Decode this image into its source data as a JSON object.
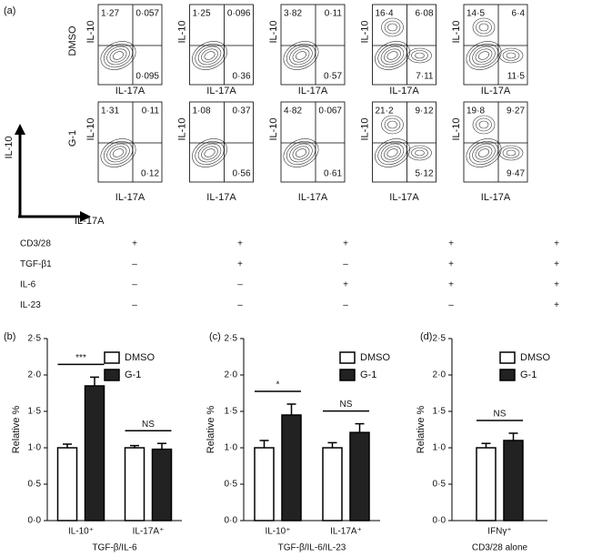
{
  "panel_a": {
    "label": "(a)",
    "x_axis": "IL-17A",
    "y_axis": "IL-10",
    "rows": [
      {
        "label": "DMSO",
        "plots": [
          {
            "ul": "1·27",
            "ur": "0·057",
            "lr": "0·095"
          },
          {
            "ul": "1·25",
            "ur": "0·096",
            "lr": "0·36"
          },
          {
            "ul": "3·82",
            "ur": "0·11",
            "lr": "0·57"
          },
          {
            "ul": "16·4",
            "ur": "6·08",
            "lr": "7·11"
          },
          {
            "ul": "14·5",
            "ur": "6·4",
            "lr": "11·5"
          }
        ]
      },
      {
        "label": "G-1",
        "plots": [
          {
            "ul": "1·31",
            "ur": "0·11",
            "lr": "0·12"
          },
          {
            "ul": "1·08",
            "ur": "0·37",
            "lr": "0·56"
          },
          {
            "ul": "4·82",
            "ur": "0·067",
            "lr": "0·61"
          },
          {
            "ul": "21·2",
            "ur": "9·12",
            "lr": "5·12"
          },
          {
            "ul": "19·8",
            "ur": "9·27",
            "lr": "9·47"
          }
        ]
      }
    ],
    "conditions": [
      {
        "name": "CD3/28",
        "marks": [
          "+",
          "+",
          "+",
          "+",
          "+"
        ]
      },
      {
        "name": "TGF-β1",
        "marks": [
          "–",
          "+",
          "–",
          "+",
          "+"
        ]
      },
      {
        "name": "IL-6",
        "marks": [
          "–",
          "–",
          "+",
          "+",
          "+"
        ]
      },
      {
        "name": "IL-23",
        "marks": [
          "–",
          "–",
          "–",
          "–",
          "+"
        ]
      }
    ]
  },
  "chart_data": [
    {
      "type": "bar",
      "label": "(b)",
      "y_label": "Relative %",
      "x_label": "TGF-β/IL-6",
      "categories": [
        "IL-10⁺",
        "IL-17A⁺"
      ],
      "significance": [
        "***",
        "NS"
      ],
      "series": [
        {
          "name": "DMSO",
          "color": "#ffffff",
          "values": [
            1.0,
            1.0
          ],
          "errors": [
            0.05,
            0.03
          ]
        },
        {
          "name": "G-1",
          "color": "#222222",
          "values": [
            1.85,
            0.98
          ],
          "errors": [
            0.12,
            0.08
          ]
        }
      ],
      "ylim": [
        0,
        2.5
      ],
      "yticks": [
        {
          "value": 0,
          "label": "0·0"
        },
        {
          "value": 0.5,
          "label": "0·5"
        },
        {
          "value": 1,
          "label": "1·0"
        },
        {
          "value": 1.5,
          "label": "1·5"
        },
        {
          "value": 2,
          "label": "2·0"
        },
        {
          "value": 2.5,
          "label": "2·5"
        }
      ]
    },
    {
      "type": "bar",
      "label": "(c)",
      "y_label": "Relative %",
      "x_label": "TGF-β/IL-6/IL-23",
      "categories": [
        "IL-10⁺",
        "IL-17A⁺"
      ],
      "significance": [
        "*",
        "NS"
      ],
      "series": [
        {
          "name": "DMSO",
          "color": "#ffffff",
          "values": [
            1.0,
            1.0
          ],
          "errors": [
            0.1,
            0.07
          ]
        },
        {
          "name": "G-1",
          "color": "#222222",
          "values": [
            1.45,
            1.21
          ],
          "errors": [
            0.15,
            0.12
          ]
        }
      ],
      "ylim": [
        0,
        2.5
      ],
      "yticks": [
        {
          "value": 0,
          "label": "0·0"
        },
        {
          "value": 0.5,
          "label": "0·5"
        },
        {
          "value": 1,
          "label": "1·0"
        },
        {
          "value": 1.5,
          "label": "1·5"
        },
        {
          "value": 2,
          "label": "2·0"
        },
        {
          "value": 2.5,
          "label": "2·5"
        }
      ]
    },
    {
      "type": "bar",
      "label": "(d)",
      "y_label": "Relative %",
      "x_label": "CD3/28 alone",
      "categories": [
        "IFNγ⁺"
      ],
      "significance": [
        "NS"
      ],
      "series": [
        {
          "name": "DMSO",
          "color": "#ffffff",
          "values": [
            1.0
          ],
          "errors": [
            0.06
          ]
        },
        {
          "name": "G-1",
          "color": "#222222",
          "values": [
            1.1
          ],
          "errors": [
            0.1
          ]
        }
      ],
      "ylim": [
        0,
        2.5
      ],
      "yticks": [
        {
          "value": 0,
          "label": "0·0"
        },
        {
          "value": 0.5,
          "label": "0·5"
        },
        {
          "value": 1,
          "label": "1·0"
        },
        {
          "value": 1.5,
          "label": "1·5"
        },
        {
          "value": 2,
          "label": "2·0"
        },
        {
          "value": 2.5,
          "label": "2·5"
        }
      ]
    }
  ]
}
